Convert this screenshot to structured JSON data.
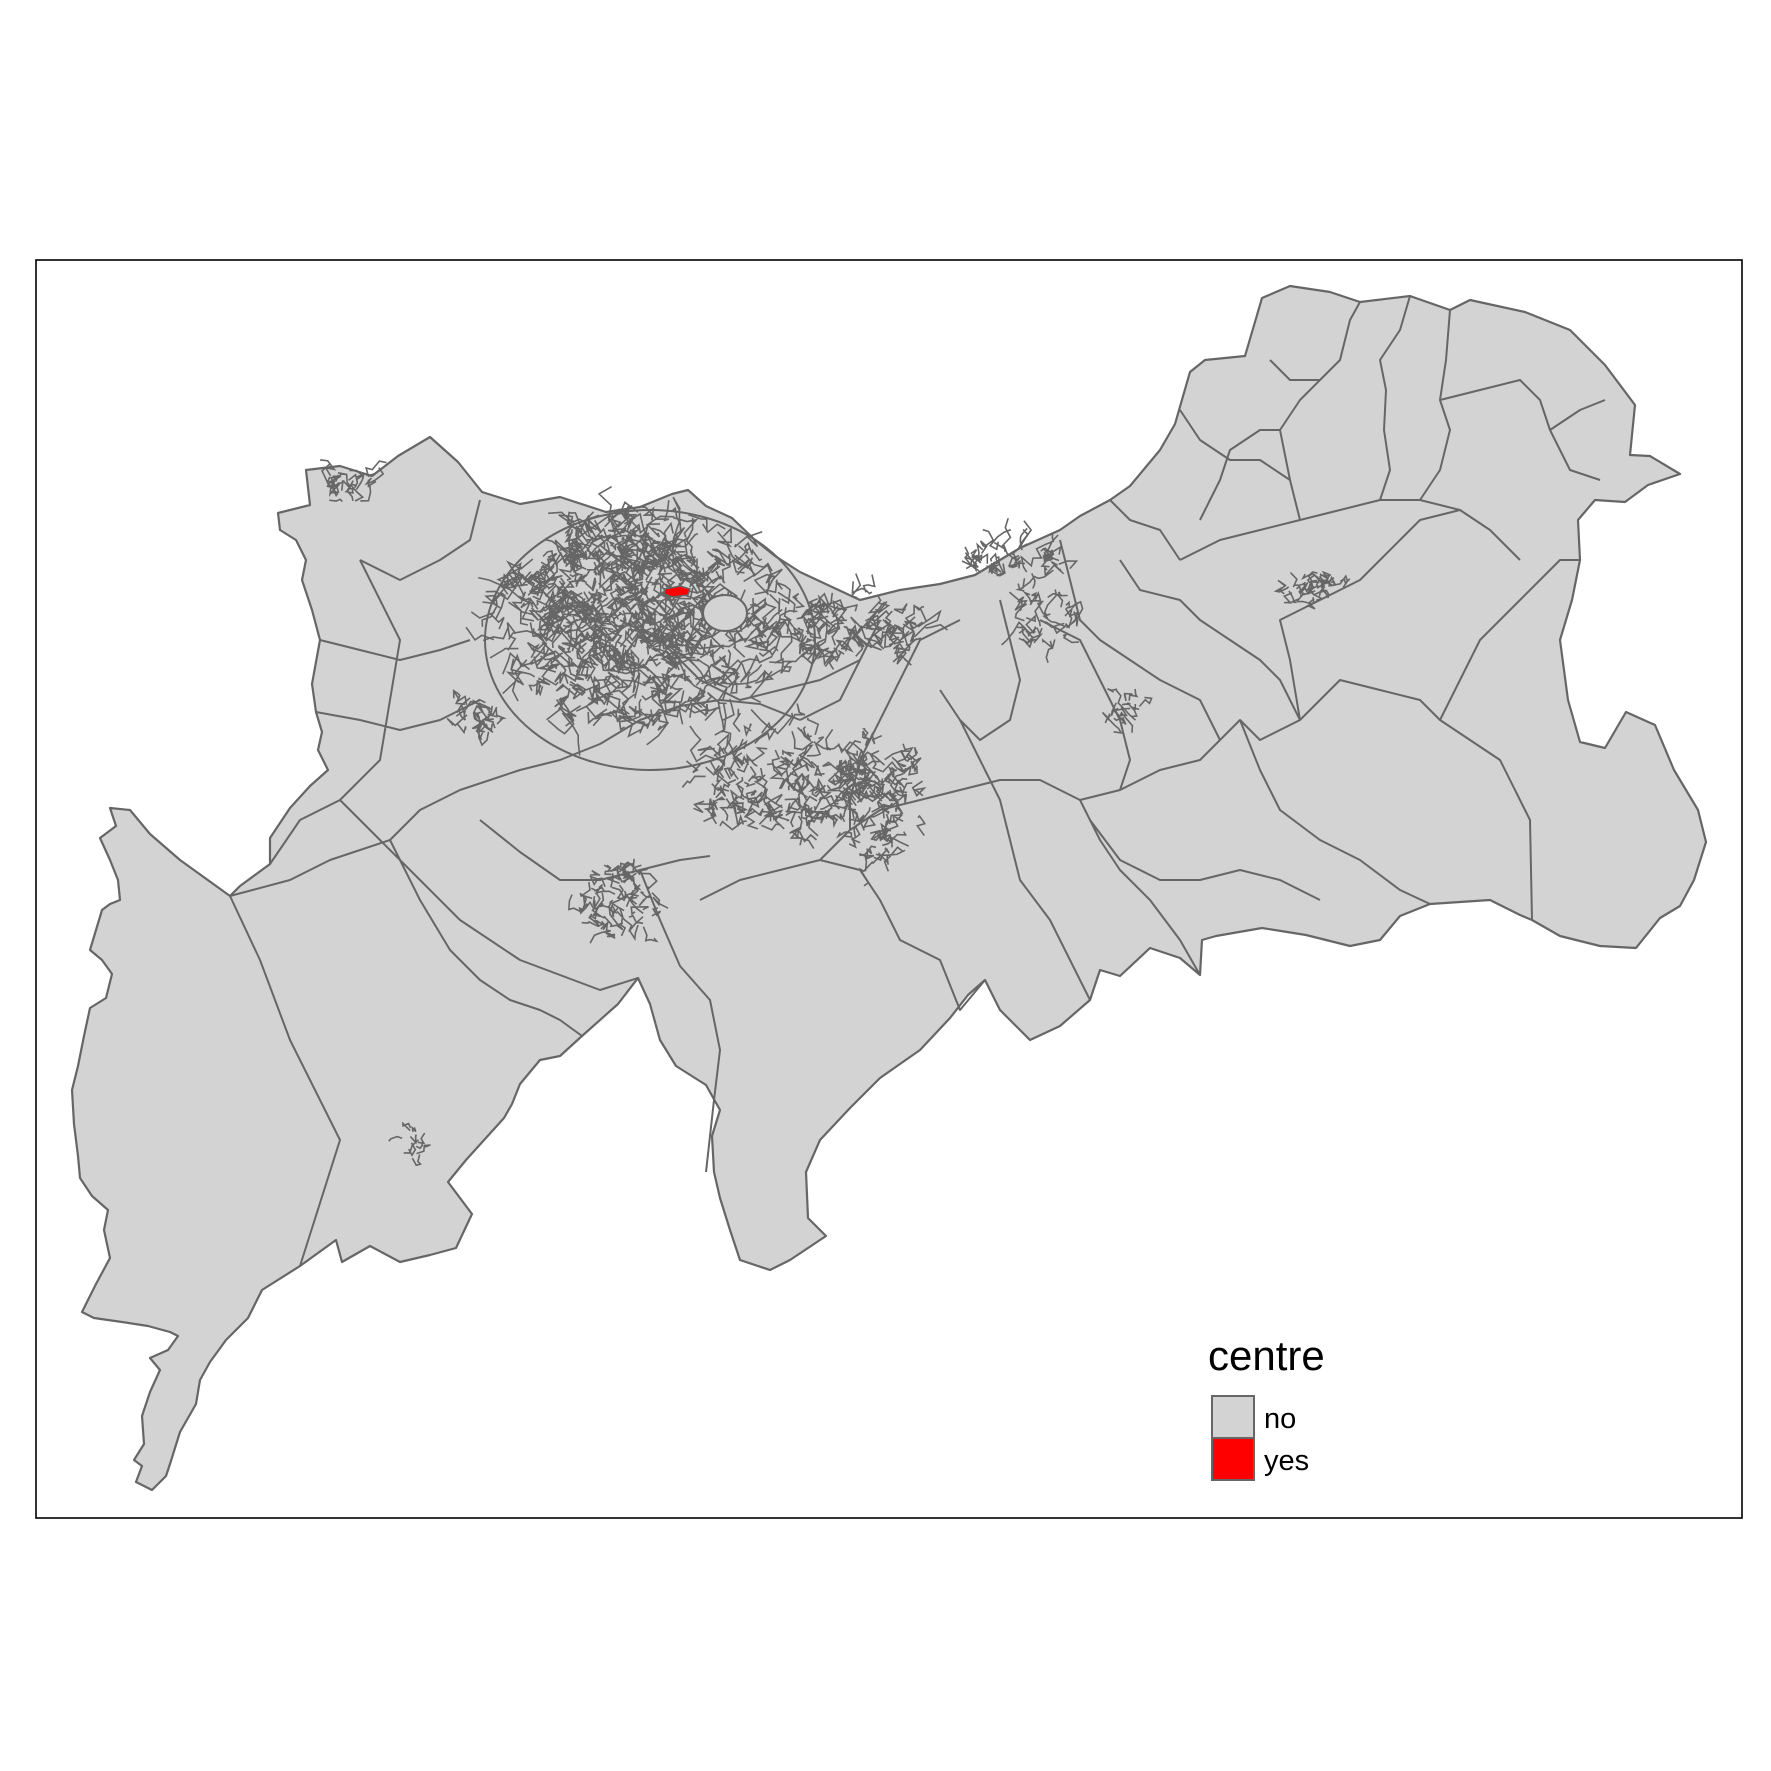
{
  "legend": {
    "title": "centre",
    "entries": [
      {
        "label": "no",
        "color": "#d3d3d3"
      },
      {
        "label": "yes",
        "color": "#ff0000"
      }
    ]
  },
  "colors": {
    "zone_fill": "#d3d3d3",
    "zone_border": "#666666",
    "highlight": "#ff0000",
    "frame": "#000000"
  }
}
